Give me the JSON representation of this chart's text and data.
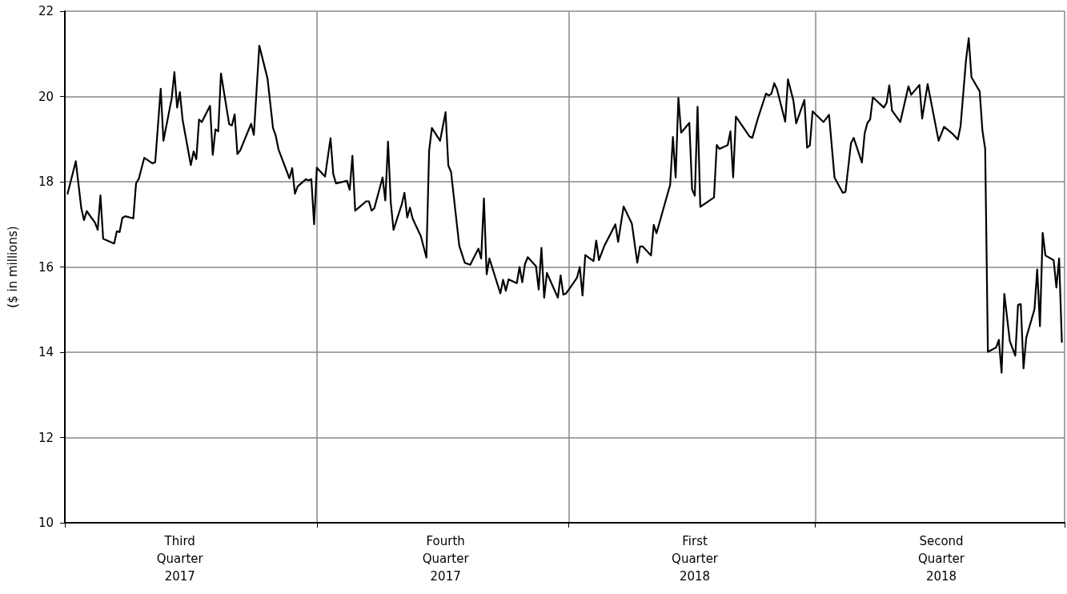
{
  "chart_data": {
    "type": "line",
    "ylabel": "($ in millions)",
    "x": [
      "2017-07-02",
      "2017-07-05",
      "2017-07-07",
      "2017-07-08",
      "2017-07-09",
      "2017-07-12",
      "2017-07-13",
      "2017-07-14",
      "2017-07-15",
      "2017-07-19",
      "2017-07-20",
      "2017-07-21",
      "2017-07-22",
      "2017-07-23",
      "2017-07-26",
      "2017-07-27",
      "2017-07-28",
      "2017-07-30",
      "2017-08-02",
      "2017-08-03",
      "2017-08-05",
      "2017-08-06",
      "2017-08-09",
      "2017-08-10",
      "2017-08-11",
      "2017-08-12",
      "2017-08-13",
      "2017-08-16",
      "2017-08-17",
      "2017-08-18",
      "2017-08-19",
      "2017-08-20",
      "2017-08-23",
      "2017-08-24",
      "2017-08-25",
      "2017-08-26",
      "2017-08-27",
      "2017-08-30",
      "2017-08-31",
      "2017-09-01",
      "2017-09-02",
      "2017-09-03",
      "2017-09-07",
      "2017-09-08",
      "2017-09-10",
      "2017-09-13",
      "2017-09-15",
      "2017-09-16",
      "2017-09-17",
      "2017-09-21",
      "2017-09-22",
      "2017-09-23",
      "2017-09-24",
      "2017-09-27",
      "2017-09-28",
      "2017-09-29",
      "2017-09-30",
      "2017-10-01",
      "2017-10-04",
      "2017-10-06",
      "2017-10-07",
      "2017-10-08",
      "2017-10-12",
      "2017-10-13",
      "2017-10-14",
      "2017-10-15",
      "2017-10-19",
      "2017-10-20",
      "2017-10-21",
      "2017-10-22",
      "2017-10-25",
      "2017-10-26",
      "2017-10-27",
      "2017-10-28",
      "2017-10-29",
      "2017-11-01",
      "2017-11-02",
      "2017-11-03",
      "2017-11-04",
      "2017-11-05",
      "2017-11-08",
      "2017-11-10",
      "2017-11-11",
      "2017-11-12",
      "2017-11-15",
      "2017-11-17",
      "2017-11-18",
      "2017-11-19",
      "2017-11-22",
      "2017-11-24",
      "2017-11-26",
      "2017-11-29",
      "2017-11-30",
      "2017-12-01",
      "2017-12-02",
      "2017-12-03",
      "2017-12-07",
      "2017-12-08",
      "2017-12-09",
      "2017-12-10",
      "2017-12-13",
      "2017-12-14",
      "2017-12-15",
      "2017-12-16",
      "2017-12-17",
      "2017-12-20",
      "2017-12-21",
      "2017-12-22",
      "2017-12-23",
      "2017-12-24",
      "2017-12-28",
      "2017-12-29",
      "2017-12-30",
      "2017-12-31",
      "2018-01-04",
      "2018-01-05",
      "2018-01-06",
      "2018-01-07",
      "2018-01-10",
      "2018-01-11",
      "2018-01-12",
      "2018-01-14",
      "2018-01-18",
      "2018-01-19",
      "2018-01-21",
      "2018-01-24",
      "2018-01-26",
      "2018-01-27",
      "2018-01-28",
      "2018-01-31",
      "2018-02-01",
      "2018-02-02",
      "2018-02-07",
      "2018-02-08",
      "2018-02-09",
      "2018-02-10",
      "2018-02-11",
      "2018-02-14",
      "2018-02-15",
      "2018-02-16",
      "2018-02-17",
      "2018-02-18",
      "2018-02-23",
      "2018-02-24",
      "2018-02-25",
      "2018-02-28",
      "2018-03-01",
      "2018-03-02",
      "2018-03-03",
      "2018-03-08",
      "2018-03-09",
      "2018-03-11",
      "2018-03-14",
      "2018-03-15",
      "2018-03-16",
      "2018-03-17",
      "2018-03-18",
      "2018-03-21",
      "2018-03-22",
      "2018-03-24",
      "2018-03-25",
      "2018-03-28",
      "2018-03-29",
      "2018-03-30",
      "2018-03-31",
      "2018-04-04",
      "2018-04-06",
      "2018-04-08",
      "2018-04-11",
      "2018-04-12",
      "2018-04-14",
      "2018-04-15",
      "2018-04-18",
      "2018-04-19",
      "2018-04-20",
      "2018-04-21",
      "2018-04-22",
      "2018-04-26",
      "2018-04-27",
      "2018-04-28",
      "2018-04-29",
      "2018-05-02",
      "2018-05-05",
      "2018-05-06",
      "2018-05-09",
      "2018-05-10",
      "2018-05-12",
      "2018-05-16",
      "2018-05-18",
      "2018-05-21",
      "2018-05-23",
      "2018-05-24",
      "2018-05-26",
      "2018-05-27",
      "2018-05-28",
      "2018-05-31",
      "2018-06-01",
      "2018-06-02",
      "2018-06-03",
      "2018-06-06",
      "2018-06-07",
      "2018-06-08",
      "2018-06-09",
      "2018-06-11",
      "2018-06-13",
      "2018-06-14",
      "2018-06-15",
      "2018-06-16",
      "2018-06-17",
      "2018-06-20",
      "2018-06-21",
      "2018-06-22",
      "2018-06-23",
      "2018-06-24",
      "2018-06-27",
      "2018-06-28",
      "2018-06-29",
      "2018-06-30"
    ],
    "values": [
      17.72,
      18.48,
      17.38,
      17.1,
      17.31,
      17.04,
      16.87,
      17.68,
      16.66,
      16.55,
      16.84,
      16.82,
      17.15,
      17.19,
      17.14,
      17.96,
      18.07,
      18.56,
      18.43,
      18.46,
      20.18,
      18.96,
      19.95,
      20.57,
      19.74,
      20.1,
      19.45,
      18.39,
      18.71,
      18.53,
      19.46,
      19.4,
      19.78,
      18.63,
      19.23,
      19.18,
      20.54,
      19.35,
      19.32,
      19.58,
      18.65,
      18.73,
      19.36,
      19.1,
      21.19,
      20.42,
      19.26,
      19.08,
      18.76,
      18.08,
      18.32,
      17.72,
      17.89,
      18.06,
      18.03,
      18.06,
      17.0,
      18.33,
      18.12,
      19.02,
      18.18,
      17.96,
      18.02,
      17.81,
      18.61,
      17.32,
      17.54,
      17.54,
      17.32,
      17.38,
      18.1,
      17.56,
      18.94,
      17.51,
      16.87,
      17.47,
      17.74,
      17.16,
      17.39,
      17.13,
      16.72,
      16.22,
      18.73,
      19.26,
      18.96,
      19.63,
      18.38,
      18.23,
      16.5,
      16.1,
      16.05,
      16.43,
      16.2,
      17.61,
      15.83,
      16.2,
      15.38,
      15.7,
      15.44,
      15.71,
      15.62,
      16.0,
      15.64,
      16.07,
      16.23,
      16.02,
      15.47,
      16.45,
      15.28,
      15.86,
      15.28,
      15.8,
      15.35,
      15.38,
      15.75,
      16.0,
      15.33,
      16.28,
      16.14,
      16.62,
      16.16,
      16.5,
      17.0,
      16.59,
      17.42,
      17.02,
      16.1,
      16.48,
      16.48,
      16.27,
      16.99,
      16.79,
      17.93,
      19.05,
      18.1,
      19.97,
      19.15,
      19.38,
      17.82,
      17.67,
      19.76,
      17.41,
      17.63,
      18.86,
      18.77,
      18.86,
      19.18,
      18.1,
      19.53,
      19.06,
      19.03,
      19.48,
      20.07,
      20.02,
      20.07,
      20.31,
      20.17,
      19.41,
      20.4,
      19.9,
      19.37,
      19.92,
      18.8,
      18.85,
      19.65,
      19.4,
      19.57,
      18.1,
      17.74,
      17.76,
      18.9,
      19.03,
      18.45,
      19.13,
      19.38,
      19.46,
      19.98,
      19.74,
      19.85,
      20.26,
      19.67,
      19.4,
      20.24,
      20.04,
      20.27,
      19.48,
      20.29,
      18.96,
      19.29,
      19.13,
      18.99,
      19.29,
      20.85,
      21.37,
      20.45,
      20.12,
      19.2,
      18.77,
      14.01,
      14.11,
      14.29,
      13.52,
      15.37,
      14.26,
      13.92,
      15.11,
      15.13,
      13.62,
      14.34,
      15.01,
      15.94,
      14.61,
      16.8,
      16.27,
      16.16,
      15.52,
      16.2,
      14.24
    ],
    "color": "#000000",
    "line_style": "solid",
    "xlim": [
      "2017-07-01",
      "2018-07-01"
    ],
    "xticks": [
      {
        "value": "2017-07-01",
        "label": null
      },
      {
        "value": "2017-08-12",
        "label": "Third\nQuarter\n2017"
      },
      {
        "value": "2017-10-01",
        "label": null
      },
      {
        "value": "2017-11-17",
        "label": "Fourth\nQuarter\n2017"
      },
      {
        "value": "2018-01-01",
        "label": null
      },
      {
        "value": "2018-02-16",
        "label": "First\nQuarter\n2018"
      },
      {
        "value": "2018-04-01",
        "label": null
      },
      {
        "value": "2018-05-17",
        "label": "Second\nQuarter\n2018"
      },
      {
        "value": "2018-07-01",
        "label": null
      }
    ],
    "ylim": [
      10,
      22
    ],
    "yticks": [
      10,
      12,
      14,
      16,
      18,
      20,
      22
    ],
    "grid": true
  }
}
